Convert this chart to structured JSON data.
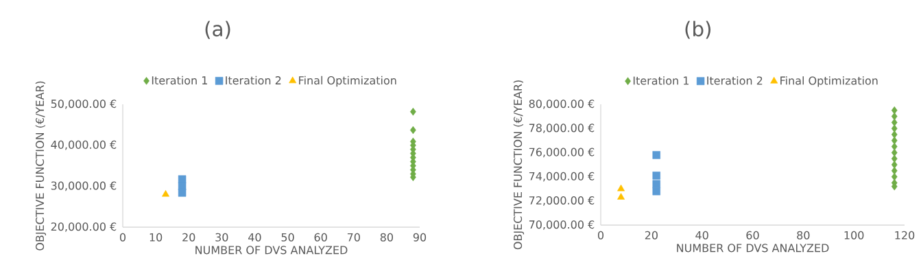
{
  "chart_data": [
    {
      "type": "scatter",
      "title": "(a)",
      "xlabel": "NUMBER OF DVS ANALYZED",
      "ylabel": "OBJECTIVE FUNCTION (€/YEAR)",
      "xlim": [
        0,
        90
      ],
      "xticks": [
        0,
        10,
        20,
        30,
        40,
        50,
        60,
        70,
        80,
        90
      ],
      "ylim": [
        20000,
        50000
      ],
      "yticks": [
        {
          "value": 20000,
          "label": "20,000.00 €"
        },
        {
          "value": 30000,
          "label": "30,000.00 €"
        },
        {
          "value": 40000,
          "label": "40,000.00 €"
        },
        {
          "value": 50000,
          "label": "50,000.00 €"
        }
      ],
      "grid": false,
      "legend": "top",
      "series": [
        {
          "name": "Iteration 1",
          "color": "#70ad47",
          "marker": "diamond",
          "x": [
            88,
            88,
            88,
            88,
            88,
            88,
            88,
            88,
            88,
            88,
            88,
            88
          ],
          "values": [
            48200,
            43700,
            40900,
            40000,
            39000,
            38000,
            37000,
            36000,
            35000,
            34000,
            33000,
            32200
          ]
        },
        {
          "name": "Iteration 2",
          "color": "#5b9bd5",
          "marker": "square",
          "x": [
            18,
            18,
            18
          ],
          "values": [
            31700,
            30000,
            28400
          ]
        },
        {
          "name": "Final Optimization",
          "color": "#ffc000",
          "marker": "triangle",
          "x": [
            13
          ],
          "values": [
            28000
          ]
        }
      ]
    },
    {
      "type": "scatter",
      "title": "(b)",
      "xlabel": "NUMBER OF DVS ANALYZED",
      "ylabel": "OBJECTIVE FUNCTION (€/YEAR)",
      "xlim": [
        0,
        120
      ],
      "xticks": [
        0,
        20,
        40,
        60,
        80,
        100,
        120
      ],
      "ylim": [
        70000,
        80000
      ],
      "yticks": [
        {
          "value": 70000,
          "label": "70,000.00 €"
        },
        {
          "value": 72000,
          "label": "72,000.00 €"
        },
        {
          "value": 74000,
          "label": "74,000.00 €"
        },
        {
          "value": 76000,
          "label": "76,000.00 €"
        },
        {
          "value": 78000,
          "label": "78,000.00 €"
        },
        {
          "value": 80000,
          "label": "80,000.00 €"
        }
      ],
      "grid": false,
      "legend": "top",
      "series": [
        {
          "name": "Iteration 1",
          "color": "#70ad47",
          "marker": "diamond",
          "x": [
            116,
            116,
            116,
            116,
            116,
            116,
            116,
            116,
            116,
            116,
            116,
            116,
            116,
            116
          ],
          "values": [
            79500,
            79000,
            78500,
            78000,
            77500,
            77000,
            76500,
            76000,
            75500,
            75000,
            74500,
            74000,
            73500,
            73200
          ]
        },
        {
          "name": "Iteration 2",
          "color": "#5b9bd5",
          "marker": "square",
          "x": [
            22,
            22,
            22,
            22
          ],
          "values": [
            75800,
            74100,
            73400,
            72800
          ]
        },
        {
          "name": "Final Optimization",
          "color": "#ffc000",
          "marker": "triangle",
          "x": [
            8,
            8
          ],
          "values": [
            73000,
            72300
          ]
        }
      ]
    }
  ]
}
